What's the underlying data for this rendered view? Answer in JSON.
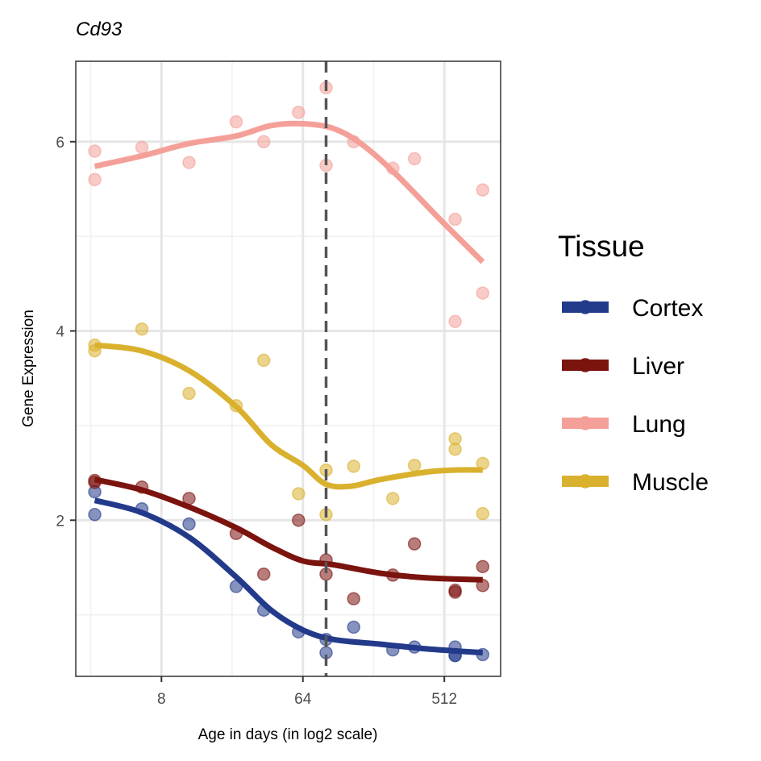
{
  "chart_data": {
    "type": "scatter",
    "title": "Cd93",
    "xlabel": "Age in days (in log2 scale)",
    "ylabel": "Gene Expression",
    "x_scale": "log2",
    "xlim": [
      2.27,
      1171
    ],
    "ylim": [
      0.35,
      6.85
    ],
    "x_ticks": [
      8,
      64,
      512
    ],
    "x_tick_labels": [
      "8",
      "64",
      "512"
    ],
    "x_minor_ticks": [
      2.83,
      22.6,
      181
    ],
    "y_ticks": [
      2,
      4,
      6
    ],
    "y_tick_labels": [
      "2",
      "4",
      "6"
    ],
    "y_minor_ticks": [
      1,
      3,
      5
    ],
    "grid": true,
    "vline": {
      "x": 90,
      "style": "dashed",
      "color": "#555555"
    },
    "legend": {
      "title": "Tissue",
      "position": "right"
    },
    "series": [
      {
        "name": "Cortex",
        "color": "#233a8b",
        "points": [
          [
            3,
            2.3
          ],
          [
            3,
            2.06
          ],
          [
            6,
            2.12
          ],
          [
            12,
            1.96
          ],
          [
            24,
            1.3
          ],
          [
            36,
            1.05
          ],
          [
            60,
            0.82
          ],
          [
            90,
            0.74
          ],
          [
            90,
            0.6
          ],
          [
            135,
            0.87
          ],
          [
            240,
            0.63
          ],
          [
            330,
            0.66
          ],
          [
            600,
            0.66
          ],
          [
            600,
            0.57
          ],
          [
            600,
            0.57
          ],
          [
            900,
            0.58
          ]
        ],
        "trend": [
          [
            3,
            2.21
          ],
          [
            6,
            2.08
          ],
          [
            12,
            1.82
          ],
          [
            24,
            1.4
          ],
          [
            40,
            1.05
          ],
          [
            64,
            0.84
          ],
          [
            100,
            0.74
          ],
          [
            200,
            0.69
          ],
          [
            400,
            0.64
          ],
          [
            900,
            0.6
          ]
        ]
      },
      {
        "name": "Liver",
        "color": "#7b130e",
        "points": [
          [
            3,
            2.42
          ],
          [
            3,
            2.4
          ],
          [
            6,
            2.35
          ],
          [
            12,
            2.23
          ],
          [
            24,
            1.86
          ],
          [
            36,
            1.43
          ],
          [
            60,
            2.0
          ],
          [
            90,
            1.58
          ],
          [
            90,
            1.43
          ],
          [
            135,
            1.17
          ],
          [
            240,
            1.42
          ],
          [
            330,
            1.75
          ],
          [
            600,
            1.26
          ],
          [
            600,
            1.24
          ],
          [
            900,
            1.51
          ],
          [
            900,
            1.31
          ]
        ],
        "trend": [
          [
            3,
            2.43
          ],
          [
            6,
            2.32
          ],
          [
            12,
            2.14
          ],
          [
            24,
            1.92
          ],
          [
            40,
            1.72
          ],
          [
            64,
            1.57
          ],
          [
            100,
            1.53
          ],
          [
            200,
            1.44
          ],
          [
            400,
            1.39
          ],
          [
            900,
            1.37
          ]
        ]
      },
      {
        "name": "Lung",
        "color": "#f4a099",
        "points": [
          [
            3,
            5.9
          ],
          [
            3,
            5.6
          ],
          [
            6,
            5.94
          ],
          [
            12,
            5.78
          ],
          [
            24,
            6.21
          ],
          [
            36,
            6.0
          ],
          [
            60,
            6.31
          ],
          [
            90,
            6.57
          ],
          [
            90,
            5.75
          ],
          [
            135,
            6.0
          ],
          [
            240,
            5.72
          ],
          [
            330,
            5.82
          ],
          [
            600,
            5.18
          ],
          [
            600,
            4.1
          ],
          [
            900,
            5.49
          ],
          [
            900,
            4.4
          ]
        ],
        "trend": [
          [
            3,
            5.74
          ],
          [
            6,
            5.85
          ],
          [
            12,
            5.98
          ],
          [
            24,
            6.06
          ],
          [
            40,
            6.17
          ],
          [
            64,
            6.19
          ],
          [
            100,
            6.14
          ],
          [
            150,
            5.98
          ],
          [
            250,
            5.66
          ],
          [
            500,
            5.15
          ],
          [
            900,
            4.73
          ]
        ]
      },
      {
        "name": "Muscle",
        "color": "#dab12e",
        "points": [
          [
            3,
            3.85
          ],
          [
            3,
            3.79
          ],
          [
            6,
            4.02
          ],
          [
            12,
            3.34
          ],
          [
            24,
            3.21
          ],
          [
            36,
            3.69
          ],
          [
            60,
            2.28
          ],
          [
            90,
            2.53
          ],
          [
            90,
            2.06
          ],
          [
            135,
            2.57
          ],
          [
            240,
            2.23
          ],
          [
            330,
            2.58
          ],
          [
            600,
            2.86
          ],
          [
            600,
            2.75
          ],
          [
            900,
            2.6
          ],
          [
            900,
            2.07
          ]
        ],
        "trend": [
          [
            3,
            3.85
          ],
          [
            6,
            3.79
          ],
          [
            12,
            3.58
          ],
          [
            24,
            3.2
          ],
          [
            40,
            2.8
          ],
          [
            64,
            2.58
          ],
          [
            90,
            2.38
          ],
          [
            130,
            2.36
          ],
          [
            200,
            2.43
          ],
          [
            400,
            2.51
          ],
          [
            600,
            2.53
          ],
          [
            900,
            2.53
          ]
        ]
      }
    ]
  }
}
